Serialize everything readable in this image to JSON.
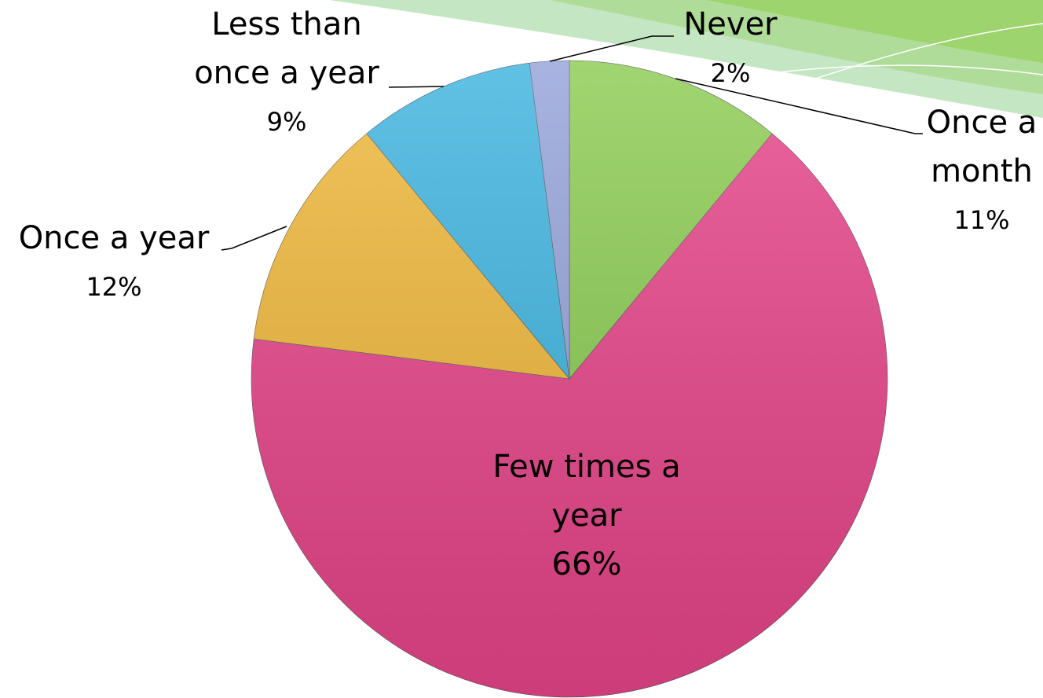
{
  "chart_data": {
    "type": "pie",
    "categories": [
      "Once a month",
      "Few times a year",
      "Once a year",
      "Less than once a year",
      "Never"
    ],
    "values": [
      11,
      66,
      12,
      9,
      2
    ],
    "value_labels": [
      "11%",
      "66%",
      "12%",
      "9%",
      "2%"
    ],
    "colors": [
      "#8ccc52",
      "#e8458a",
      "#f0b83a",
      "#3fb4e0",
      "#95a3da"
    ]
  }
}
